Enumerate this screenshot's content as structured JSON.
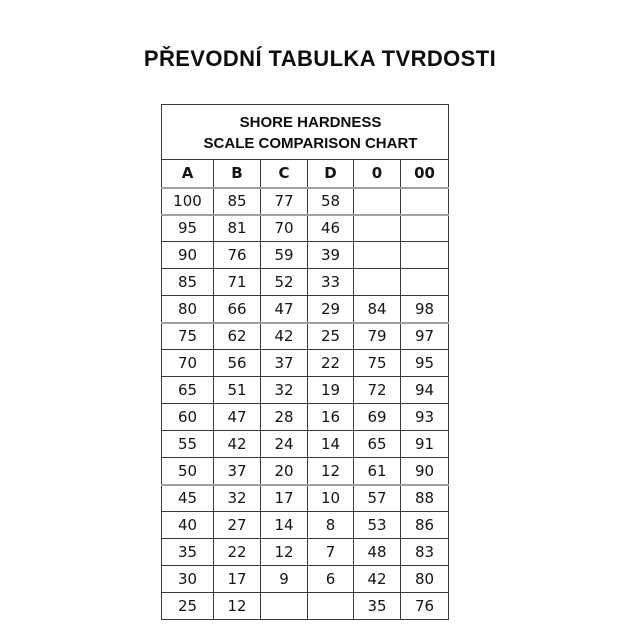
{
  "page": {
    "title": "PŘEVODNÍ TABULKA TVRDOSTI",
    "background_color": "#ffffff",
    "text_color": "#0d0d0d"
  },
  "table": {
    "caption_line1": "SHORE HARDNESS",
    "caption_line2": "SCALE COMPARISON CHART",
    "headers": [
      "A",
      "B",
      "C",
      "D",
      "0",
      "00"
    ],
    "rows": [
      [
        "100",
        "85",
        "77",
        "58",
        "",
        ""
      ],
      [
        "95",
        "81",
        "70",
        "46",
        "",
        ""
      ],
      [
        "90",
        "76",
        "59",
        "39",
        "",
        ""
      ],
      [
        "85",
        "71",
        "52",
        "33",
        "",
        ""
      ],
      [
        "80",
        "66",
        "47",
        "29",
        "84",
        "98"
      ],
      [
        "75",
        "62",
        "42",
        "25",
        "79",
        "97"
      ],
      [
        "70",
        "56",
        "37",
        "22",
        "75",
        "95"
      ],
      [
        "65",
        "51",
        "32",
        "19",
        "72",
        "94"
      ],
      [
        "60",
        "47",
        "28",
        "16",
        "69",
        "93"
      ],
      [
        "55",
        "42",
        "24",
        "14",
        "65",
        "91"
      ],
      [
        "50",
        "37",
        "20",
        "12",
        "61",
        "90"
      ],
      [
        "45",
        "32",
        "17",
        "10",
        "57",
        "88"
      ],
      [
        "40",
        "27",
        "14",
        "8",
        "53",
        "86"
      ],
      [
        "35",
        "22",
        "12",
        "7",
        "48",
        "83"
      ],
      [
        "30",
        "17",
        "9",
        "6",
        "42",
        "80"
      ],
      [
        "25",
        "12",
        "",
        "",
        "35",
        "76"
      ]
    ],
    "grid_color": "#3a3a3a",
    "thick_grid_color": "#9f9f9f",
    "cell_text_color": "#141414"
  }
}
